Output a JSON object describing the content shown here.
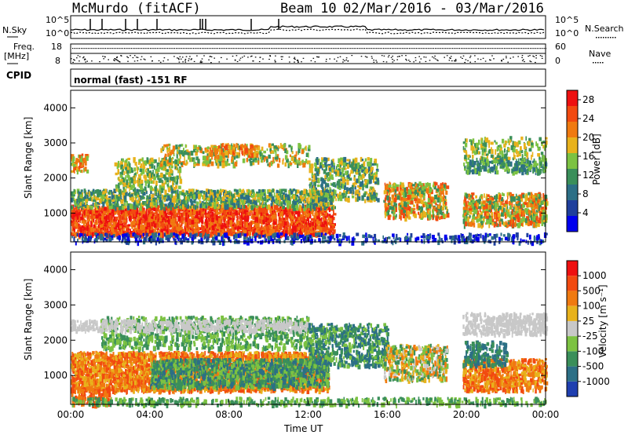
{
  "header": {
    "station": "McMurdo (fitACF)",
    "beam": "Beam 10",
    "date_range": "02/Mar/2016 - 03/Mar/2016"
  },
  "strip": {
    "nsky_label": "N.Sky",
    "nsearch_label": "N.Search",
    "noise_ticks_left": [
      "10^5",
      "10^0"
    ],
    "noise_ticks_right": [
      "10^5",
      "10^0"
    ],
    "freq_label_1": "Freq.",
    "freq_label_2": "[MHz]",
    "freq_ticks": [
      "18",
      "8"
    ],
    "nave_label": "Nave",
    "nave_ticks": [
      "60",
      "0"
    ],
    "cpid_label": "CPID",
    "cpid_value": "normal (fast) -151 RF"
  },
  "colors": {
    "power_scale": [
      "#0000ee",
      "#1f3f9c",
      "#2c6f86",
      "#3a8f5a",
      "#7cc242",
      "#e8b21c",
      "#f07a10",
      "#f24a10",
      "#ee1010"
    ],
    "velocity_scale": [
      "#1f3fb0",
      "#2c6f86",
      "#3a8f5a",
      "#7cc242",
      "#c8c8c8",
      "#e8b21c",
      "#f07a10",
      "#f24a10",
      "#ee1010"
    ]
  },
  "chart_data": [
    {
      "type": "heatmap",
      "name": "power",
      "xlabel": "Time UT",
      "ylabel": "Slant Range [km]",
      "ylim": [
        180,
        4500
      ],
      "xlim": [
        "00:00",
        "24:00"
      ],
      "y_ticks": [
        "1000",
        "2000",
        "3000",
        "4000"
      ],
      "colorbar_label": "Power [dB]",
      "colorbar_ticks": [
        "4",
        "8",
        "12",
        "16",
        "20",
        "24",
        "28"
      ],
      "colorbar_range": [
        0,
        30
      ]
    },
    {
      "type": "heatmap",
      "name": "velocity",
      "xlabel": "Time UT",
      "ylabel": "Slant Range [km]",
      "ylim": [
        180,
        4500
      ],
      "xlim": [
        "00:00",
        "24:00"
      ],
      "y_ticks": [
        "1000",
        "2000",
        "3000",
        "4000"
      ],
      "colorbar_label": "Velocity [m s⁻¹]",
      "colorbar_ticks": [
        "1000",
        "500",
        "100",
        "25",
        "-25",
        "-100",
        "-500",
        "-1000"
      ]
    }
  ],
  "x_axis": {
    "ticks": [
      "00:00",
      "04:00",
      "08:00",
      "12:00",
      "16:00",
      "20:00",
      "00:00"
    ],
    "label": "Time UT"
  }
}
